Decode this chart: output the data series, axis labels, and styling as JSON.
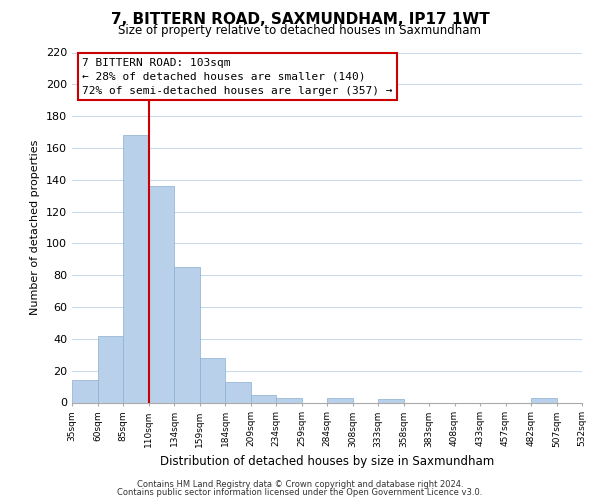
{
  "title": "7, BITTERN ROAD, SAXMUNDHAM, IP17 1WT",
  "subtitle": "Size of property relative to detached houses in Saxmundham",
  "xlabel": "Distribution of detached houses by size in Saxmundham",
  "ylabel": "Number of detached properties",
  "all_labels": [
    "35sqm",
    "60sqm",
    "85sqm",
    "110sqm",
    "134sqm",
    "159sqm",
    "184sqm",
    "209sqm",
    "234sqm",
    "259sqm",
    "284sqm",
    "308sqm",
    "333sqm",
    "358sqm",
    "383sqm",
    "408sqm",
    "433sqm",
    "457sqm",
    "482sqm",
    "507sqm",
    "532sqm"
  ],
  "bar_values": [
    14,
    42,
    168,
    136,
    85,
    28,
    13,
    5,
    3,
    0,
    3,
    0,
    2,
    0,
    0,
    0,
    0,
    0,
    3,
    0
  ],
  "bar_color": "#b8d0ea",
  "bar_edge_color": "#8ab0d0",
  "ylim": [
    0,
    220
  ],
  "yticks": [
    0,
    20,
    40,
    60,
    80,
    100,
    120,
    140,
    160,
    180,
    200,
    220
  ],
  "vline_x": 3,
  "vline_color": "#cc0000",
  "annotation_title": "7 BITTERN ROAD: 103sqm",
  "annotation_line1": "← 28% of detached houses are smaller (140)",
  "annotation_line2": "72% of semi-detached houses are larger (357) →",
  "footer_line1": "Contains HM Land Registry data © Crown copyright and database right 2024.",
  "footer_line2": "Contains public sector information licensed under the Open Government Licence v3.0.",
  "background_color": "#ffffff",
  "grid_color": "#c8d8ec"
}
